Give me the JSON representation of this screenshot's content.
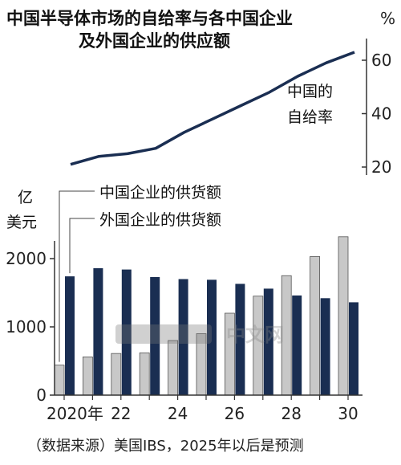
{
  "chart_data": [
    {
      "type": "line",
      "title_lines": [
        "中国半导体市场的自给率与各中国企业",
        "及外国企业的供应额"
      ],
      "y_unit": "%",
      "y_ticks": [
        20,
        40,
        60
      ],
      "series_label": "中国的自给率",
      "series_label_lines": [
        "中国的",
        "自给率"
      ],
      "x": [
        2020,
        2021,
        2022,
        2023,
        2024,
        2025,
        2026,
        2027,
        2028,
        2029,
        2030
      ],
      "values": [
        21,
        24,
        25,
        27,
        33,
        38,
        43,
        48,
        54,
        59,
        63
      ],
      "ylim": [
        18,
        66
      ],
      "color": "#1a2e52"
    },
    {
      "type": "bar",
      "y_unit_lines": [
        "亿",
        "美元"
      ],
      "y_ticks": [
        0,
        1000,
        2000
      ],
      "ylim": [
        0,
        2400
      ],
      "x_tick_labels": [
        "2020年",
        "22",
        "24",
        "26",
        "28",
        "30"
      ],
      "x_tick_years": [
        2020,
        2022,
        2024,
        2026,
        2028,
        2030
      ],
      "categories": [
        2020,
        2021,
        2022,
        2023,
        2024,
        2025,
        2026,
        2027,
        2028,
        2029,
        2030
      ],
      "series": [
        {
          "name": "中国企业的供货额",
          "color": "#c8c8c8",
          "values": [
            440,
            560,
            610,
            620,
            800,
            900,
            1200,
            1450,
            1750,
            2030,
            2320
          ]
        },
        {
          "name": "外国企业的供货额",
          "color": "#1a2e52",
          "values": [
            1740,
            1860,
            1840,
            1730,
            1700,
            1690,
            1630,
            1560,
            1460,
            1420,
            1360
          ]
        }
      ]
    }
  ],
  "footer": {
    "source": "（数据来源）美国IBS，2025年以后是预测"
  },
  "watermark": {
    "text": "中文网"
  }
}
